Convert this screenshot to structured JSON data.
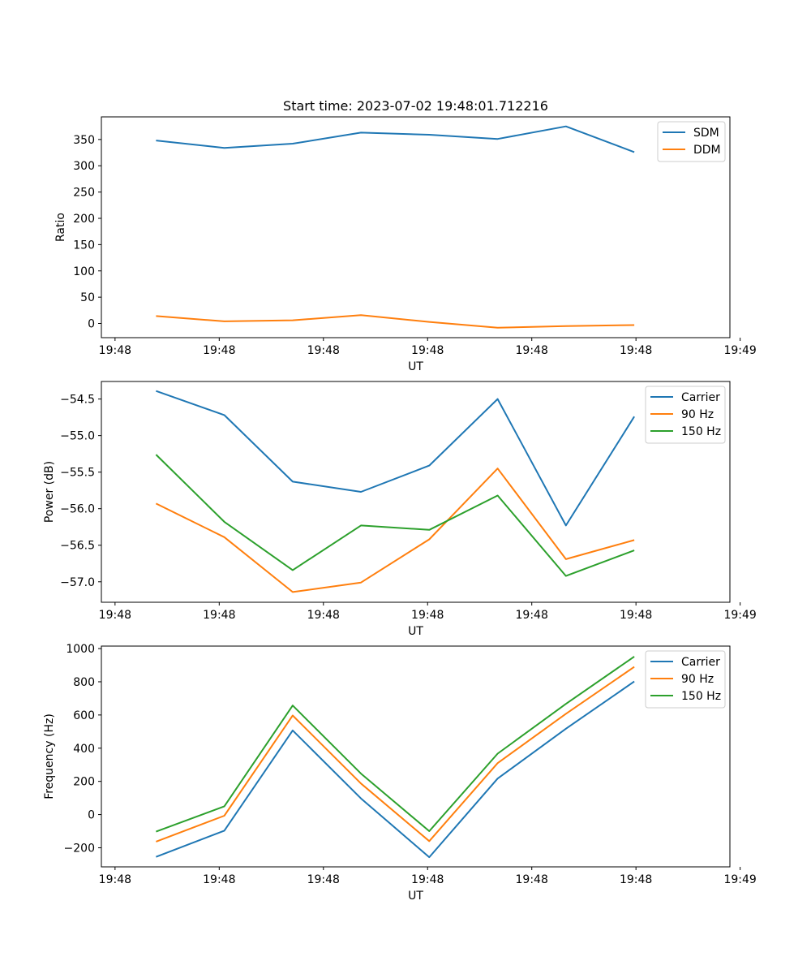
{
  "chart_data": [
    {
      "type": "line",
      "title": "Start time: 2023-07-02 19:48:01.712216",
      "xlabel": "UT",
      "ylabel": "Ratio",
      "x": [
        1,
        2,
        3,
        4,
        5,
        6,
        7,
        8
      ],
      "xlim": [
        0.2,
        9.4
      ],
      "xticks": [
        0.4,
        1.925,
        3.45,
        4.975,
        6.5,
        8.025,
        9.55
      ],
      "xtick_labels": [
        "19:48",
        "19:48",
        "19:48",
        "19:48",
        "19:48",
        "19:48",
        "19:49"
      ],
      "ylim": [
        -27,
        393
      ],
      "yticks": [
        0,
        50,
        100,
        150,
        200,
        250,
        300,
        350
      ],
      "ytick_labels": [
        "0",
        "50",
        "100",
        "150",
        "200",
        "250",
        "300",
        "350"
      ],
      "legend_position": "top-right",
      "series": [
        {
          "name": "SDM",
          "color": "#1f77b4",
          "values": [
            348,
            334,
            342,
            363,
            359,
            351,
            375,
            326
          ]
        },
        {
          "name": "DDM",
          "color": "#ff7f0e",
          "values": [
            14,
            4,
            6,
            16,
            3,
            -8,
            -5,
            -3
          ]
        }
      ]
    },
    {
      "type": "line",
      "title": "",
      "xlabel": "UT",
      "ylabel": "Power (dB)",
      "x": [
        1,
        2,
        3,
        4,
        5,
        6,
        7,
        8
      ],
      "xlim": [
        0.2,
        9.4
      ],
      "xticks": [
        0.4,
        1.925,
        3.45,
        4.975,
        6.5,
        8.025,
        9.55
      ],
      "xtick_labels": [
        "19:48",
        "19:48",
        "19:48",
        "19:48",
        "19:48",
        "19:48",
        "19:49"
      ],
      "ylim": [
        -57.28,
        -54.26
      ],
      "yticks": [
        -57.0,
        -56.5,
        -56.0,
        -55.5,
        -55.0,
        -54.5
      ],
      "ytick_labels": [
        "−57.0",
        "−56.5",
        "−56.0",
        "−55.5",
        "−55.0",
        "−54.5"
      ],
      "legend_position": "top-right",
      "series": [
        {
          "name": "Carrier",
          "color": "#1f77b4",
          "values": [
            -54.39,
            -54.72,
            -55.63,
            -55.77,
            -55.41,
            -54.5,
            -56.23,
            -54.74
          ]
        },
        {
          "name": "90 Hz",
          "color": "#ff7f0e",
          "values": [
            -55.93,
            -56.39,
            -57.14,
            -57.01,
            -56.42,
            -55.45,
            -56.69,
            -56.43
          ]
        },
        {
          "name": "150 Hz",
          "color": "#2ca02c",
          "values": [
            -55.26,
            -56.18,
            -56.84,
            -56.23,
            -56.29,
            -55.82,
            -56.92,
            -56.57
          ]
        }
      ]
    },
    {
      "type": "line",
      "title": "",
      "xlabel": "UT",
      "ylabel": "Frequency (Hz)",
      "x": [
        1,
        2,
        3,
        4,
        5,
        6,
        7,
        8
      ],
      "xlim": [
        0.2,
        9.4
      ],
      "xticks": [
        0.4,
        1.925,
        3.45,
        4.975,
        6.5,
        8.025,
        9.55
      ],
      "xtick_labels": [
        "19:48",
        "19:48",
        "19:48",
        "19:48",
        "19:48",
        "19:48",
        "19:49"
      ],
      "ylim": [
        -315,
        1015
      ],
      "yticks": [
        -200,
        0,
        200,
        400,
        600,
        800,
        1000
      ],
      "ytick_labels": [
        "−200",
        "0",
        "200",
        "400",
        "600",
        "800",
        "1000"
      ],
      "legend_position": "top-right",
      "series": [
        {
          "name": "Carrier",
          "color": "#1f77b4",
          "values": [
            -255,
            -97,
            507,
            97,
            -257,
            217,
            517,
            802
          ]
        },
        {
          "name": "90 Hz",
          "color": "#ff7f0e",
          "values": [
            -163,
            -7,
            597,
            187,
            -160,
            310,
            607,
            890
          ]
        },
        {
          "name": "150 Hz",
          "color": "#2ca02c",
          "values": [
            -103,
            50,
            657,
            247,
            -100,
            367,
            667,
            952
          ]
        }
      ]
    }
  ]
}
